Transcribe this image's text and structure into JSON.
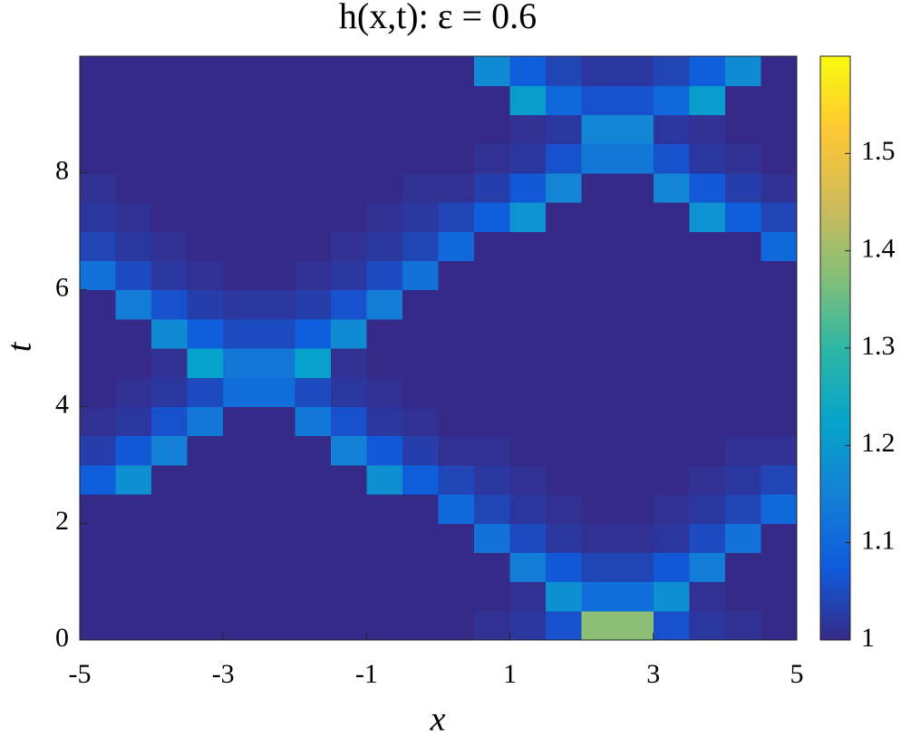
{
  "chart_data": {
    "type": "heatmap",
    "title": "h(x,t): ε = 0.6",
    "x_label": "x",
    "y_label": "t",
    "x": [
      -4.75,
      -4.25,
      -3.75,
      -3.25,
      -2.75,
      -2.25,
      -1.75,
      -1.25,
      -0.75,
      -0.25,
      0.25,
      0.75,
      1.25,
      1.75,
      2.25,
      2.75,
      3.25,
      3.75,
      4.25,
      4.75
    ],
    "y": [
      0.25,
      0.75,
      1.25,
      1.75,
      2.25,
      2.75,
      3.25,
      3.75,
      4.25,
      4.75,
      5.25,
      5.75,
      6.25,
      6.75,
      7.25,
      7.75,
      8.25,
      8.75,
      9.25,
      9.75
    ],
    "z": [
      [
        1,
        1,
        1,
        1,
        1,
        1,
        1,
        1,
        1,
        1,
        1,
        1.01,
        1.02,
        1.06,
        1.38,
        1.38,
        1.06,
        1.02,
        1.01,
        1
      ],
      [
        1,
        1,
        1,
        1,
        1,
        1,
        1,
        1,
        1,
        1,
        1,
        1,
        1.01,
        1.18,
        1.11,
        1.11,
        1.18,
        1.01,
        1,
        1
      ],
      [
        1,
        1,
        1,
        1,
        1,
        1,
        1,
        1,
        1,
        1,
        1,
        1,
        1.14,
        1.07,
        1.04,
        1.04,
        1.07,
        1.14,
        1,
        1
      ],
      [
        1,
        1,
        1,
        1,
        1,
        1,
        1,
        1,
        1,
        1,
        1,
        1.12,
        1.05,
        1.02,
        1.01,
        1.01,
        1.02,
        1.05,
        1.12,
        1
      ],
      [
        1,
        1,
        1,
        1,
        1,
        1,
        1,
        1,
        1,
        1,
        1.1,
        1.04,
        1.02,
        1.01,
        1,
        1,
        1.01,
        1.02,
        1.04,
        1.1
      ],
      [
        1.08,
        1.18,
        1,
        1,
        1,
        1,
        1,
        1,
        1.18,
        1.08,
        1.04,
        1.02,
        1.01,
        1,
        1,
        1,
        1,
        1.01,
        1.02,
        1.04
      ],
      [
        1.03,
        1.07,
        1.15,
        1,
        1,
        1,
        1,
        1.15,
        1.07,
        1.03,
        1.01,
        1.01,
        1,
        1,
        1,
        1,
        1,
        1,
        1.01,
        1.01
      ],
      [
        1.01,
        1.02,
        1.06,
        1.13,
        1,
        1,
        1.13,
        1.06,
        1.02,
        1.01,
        1,
        1,
        1,
        1,
        1,
        1,
        1,
        1,
        1,
        1
      ],
      [
        1,
        1.01,
        1.02,
        1.05,
        1.11,
        1.11,
        1.05,
        1.02,
        1.01,
        1,
        1,
        1,
        1,
        1,
        1,
        1,
        1,
        1,
        1,
        1
      ],
      [
        1,
        1,
        1.01,
        1.22,
        1.13,
        1.13,
        1.22,
        1.01,
        1,
        1,
        1,
        1,
        1,
        1,
        1,
        1,
        1,
        1,
        1,
        1
      ],
      [
        1,
        1,
        1.17,
        1.08,
        1.05,
        1.05,
        1.08,
        1.17,
        1,
        1,
        1,
        1,
        1,
        1,
        1,
        1,
        1,
        1,
        1,
        1
      ],
      [
        1,
        1.14,
        1.06,
        1.03,
        1.02,
        1.02,
        1.03,
        1.06,
        1.14,
        1,
        1,
        1,
        1,
        1,
        1,
        1,
        1,
        1,
        1,
        1
      ],
      [
        1.12,
        1.05,
        1.02,
        1.01,
        1,
        1,
        1.01,
        1.02,
        1.05,
        1.12,
        1,
        1,
        1,
        1,
        1,
        1,
        1,
        1,
        1,
        1
      ],
      [
        1.04,
        1.02,
        1.01,
        1,
        1,
        1,
        1,
        1.01,
        1.02,
        1.04,
        1.1,
        1,
        1,
        1,
        1,
        1,
        1,
        1,
        1,
        1.1
      ],
      [
        1.02,
        1.01,
        1,
        1,
        1,
        1,
        1,
        1,
        1.01,
        1.02,
        1.04,
        1.08,
        1.19,
        1,
        1,
        1,
        1,
        1.19,
        1.08,
        1.04
      ],
      [
        1.01,
        1,
        1,
        1,
        1,
        1,
        1,
        1,
        1,
        1.01,
        1.01,
        1.03,
        1.07,
        1.16,
        1,
        1,
        1.16,
        1.07,
        1.03,
        1.01
      ],
      [
        1,
        1,
        1,
        1,
        1,
        1,
        1,
        1,
        1,
        1,
        1,
        1.01,
        1.02,
        1.06,
        1.13,
        1.13,
        1.06,
        1.02,
        1.01,
        1
      ],
      [
        1,
        1,
        1,
        1,
        1,
        1,
        1,
        1,
        1,
        1,
        1,
        1,
        1.01,
        1.02,
        1.16,
        1.16,
        1.02,
        1.01,
        1,
        1
      ],
      [
        1,
        1,
        1,
        1,
        1,
        1,
        1,
        1,
        1,
        1,
        1,
        1,
        1.21,
        1.1,
        1.06,
        1.06,
        1.1,
        1.21,
        1,
        1
      ],
      [
        1,
        1,
        1,
        1,
        1,
        1,
        1,
        1,
        1,
        1,
        1,
        1.17,
        1.08,
        1.04,
        1.02,
        1.02,
        1.04,
        1.08,
        1.17,
        1
      ]
    ],
    "xlim": [
      -5,
      5
    ],
    "xticks": [
      -5,
      -3,
      -1,
      1,
      3,
      5
    ],
    "ylim": [
      0,
      10
    ],
    "yticks": [
      0,
      2,
      4,
      6,
      8
    ],
    "clim": [
      1,
      1.6
    ],
    "cticks": [
      1,
      1.1,
      1.2,
      1.3,
      1.4,
      1.5
    ],
    "colormap": [
      "#352a87",
      "#0f5cdd",
      "#1481d6",
      "#06a4ca",
      "#2eb7a4",
      "#87bf77",
      "#d1bb59",
      "#fec832",
      "#f9fb0e"
    ]
  }
}
